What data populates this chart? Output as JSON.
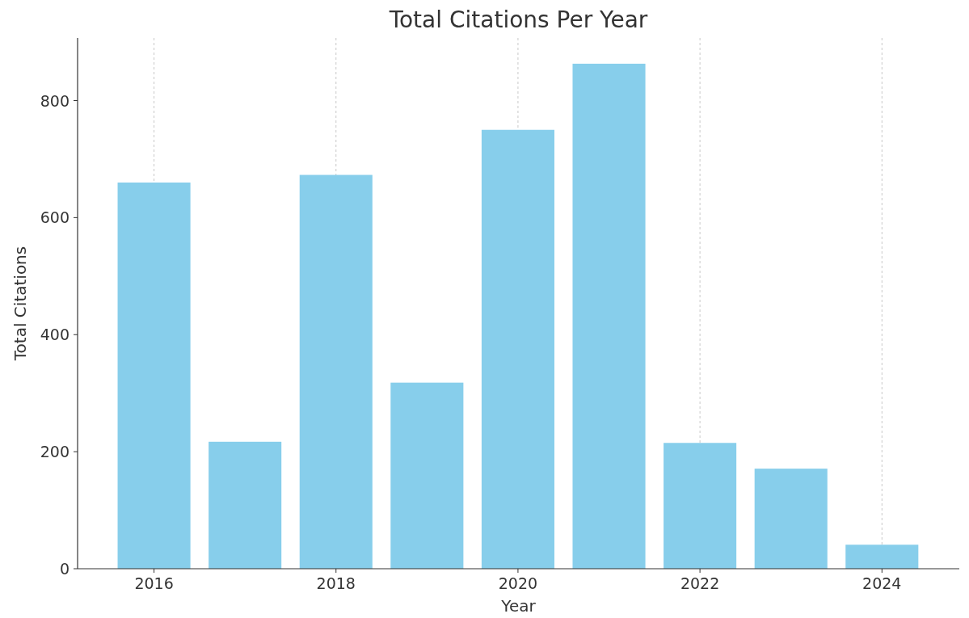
{
  "chart_data": {
    "type": "bar",
    "title": "Total Citations Per Year",
    "xlabel": "Year",
    "ylabel": "Total Citations",
    "x": [
      2016,
      2017,
      2018,
      2019,
      2020,
      2021,
      2022,
      2023,
      2024
    ],
    "values": [
      660,
      217,
      673,
      318,
      750,
      863,
      215,
      171,
      41
    ],
    "color": "#87ceeb",
    "xlim": [
      2015.16,
      2024.85
    ],
    "xticks": [
      2016,
      2018,
      2020,
      2022,
      2024
    ],
    "ylim": [
      0,
      907
    ],
    "yticks": [
      0,
      200,
      400,
      600,
      800
    ],
    "grid": "x"
  }
}
